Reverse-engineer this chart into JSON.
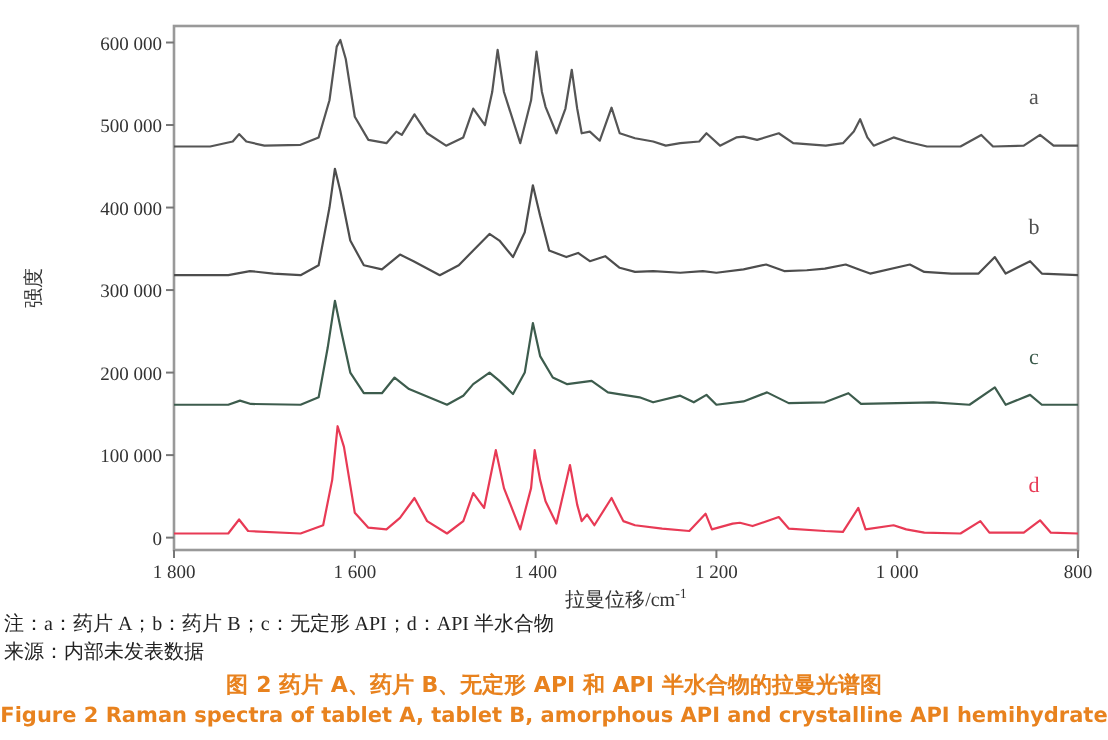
{
  "chart_data": {
    "type": "line",
    "title": "图 2 药片 A、药片 B、无定形 API 和 API 半水合物的拉曼光谱图",
    "subtitle": "Figure 2 Raman spectra of tablet A, tablet B, amorphous API and crystalline API hemihydrate",
    "xlabel": "拉曼位移/cm$^{-1}$",
    "ylabel": "强度",
    "annotations": [
      "注：a：药片 A；b：药片 B；c：无定形 API；d：API 半水合物",
      "来源：内部未发表数据"
    ],
    "xlim": [
      1800,
      800
    ],
    "ylim": [
      -15000,
      620000
    ],
    "xticks": [
      {
        "value": 1800,
        "label": "1 800"
      },
      {
        "value": 1600,
        "label": "1 600"
      },
      {
        "value": 1400,
        "label": "1 400"
      },
      {
        "value": 1200,
        "label": "1 200"
      },
      {
        "value": 1000,
        "label": "1 000"
      },
      {
        "value": 800,
        "label": "800"
      }
    ],
    "yticks": [
      0,
      {
        "value": 100000,
        "label": "100 000"
      },
      {
        "value": 200000,
        "label": "200 000"
      },
      {
        "value": 300000,
        "label": "300 000"
      },
      {
        "value": 400000,
        "label": "400 000"
      },
      {
        "value": 500000,
        "label": "500 000"
      },
      {
        "value": 600000,
        "label": "600 000"
      }
    ],
    "grid": false,
    "marker": "none",
    "line_style": "solid",
    "series": [
      {
        "name": "a",
        "color": "#555555",
        "x": [
          1800,
          1760,
          1735,
          1728,
          1720,
          1700,
          1660,
          1640,
          1628,
          1620,
          1616,
          1610,
          1600,
          1585,
          1565,
          1554,
          1548,
          1534,
          1520,
          1499,
          1480,
          1469,
          1456,
          1448,
          1442,
          1435,
          1417,
          1405,
          1399,
          1393,
          1389,
          1377,
          1367,
          1360,
          1354,
          1349,
          1340,
          1329,
          1316,
          1307,
          1290,
          1270,
          1256,
          1240,
          1219,
          1211,
          1196,
          1178,
          1170,
          1155,
          1131,
          1115,
          1079,
          1060,
          1048,
          1041,
          1033,
          1026,
          1004,
          990,
          967,
          930,
          907,
          894,
          860,
          842,
          827,
          800
        ],
        "values": [
          474000,
          474000,
          480000,
          489000,
          480000,
          475000,
          476000,
          485000,
          530000,
          595000,
          603000,
          580000,
          510000,
          482000,
          478000,
          492000,
          488000,
          513000,
          490000,
          475000,
          485000,
          520000,
          500000,
          540000,
          591000,
          540000,
          478000,
          530000,
          589000,
          540000,
          522000,
          490000,
          520000,
          567000,
          520000,
          490000,
          492000,
          481000,
          521000,
          490000,
          484000,
          480000,
          475000,
          478000,
          480000,
          490000,
          475000,
          485000,
          486000,
          482000,
          490000,
          478000,
          475000,
          478000,
          492000,
          507000,
          485000,
          475000,
          485000,
          480000,
          474000,
          474000,
          488000,
          474000,
          475000,
          488000,
          475000,
          475000
        ]
      },
      {
        "name": "b",
        "color": "#4d4d4d",
        "x": [
          1800,
          1740,
          1716,
          1690,
          1660,
          1640,
          1628,
          1622,
          1616,
          1605,
          1590,
          1570,
          1550,
          1535,
          1506,
          1485,
          1469,
          1451,
          1440,
          1425,
          1412,
          1403,
          1395,
          1385,
          1366,
          1353,
          1340,
          1323,
          1307,
          1290,
          1270,
          1240,
          1215,
          1200,
          1170,
          1145,
          1125,
          1100,
          1080,
          1057,
          1040,
          1030,
          986,
          970,
          940,
          910,
          892,
          880,
          853,
          840,
          800
        ],
        "values": [
          318000,
          318000,
          323000,
          320000,
          318000,
          330000,
          400000,
          447000,
          420000,
          360000,
          330000,
          325000,
          343000,
          335000,
          318000,
          330000,
          348000,
          368000,
          360000,
          340000,
          370000,
          427000,
          390000,
          348000,
          340000,
          345000,
          335000,
          341000,
          327000,
          322000,
          323000,
          321000,
          323000,
          321000,
          325000,
          331000,
          323000,
          324000,
          326000,
          331000,
          324000,
          320000,
          331000,
          322000,
          320000,
          320000,
          340000,
          320000,
          335000,
          320000,
          318000
        ]
      },
      {
        "name": "c",
        "color": "#3d5c4d",
        "x": [
          1800,
          1740,
          1727,
          1715,
          1660,
          1640,
          1630,
          1622,
          1615,
          1605,
          1590,
          1570,
          1556,
          1540,
          1498,
          1480,
          1469,
          1451,
          1440,
          1425,
          1412,
          1403,
          1395,
          1381,
          1365,
          1338,
          1320,
          1308,
          1285,
          1270,
          1240,
          1225,
          1211,
          1200,
          1170,
          1144,
          1120,
          1080,
          1054,
          1040,
          1000,
          960,
          920,
          892,
          880,
          853,
          840,
          800
        ],
        "values": [
          161000,
          161000,
          166000,
          162000,
          161000,
          170000,
          230000,
          287000,
          250000,
          200000,
          175000,
          175000,
          194000,
          180000,
          161000,
          172000,
          186000,
          200000,
          190000,
          174000,
          200000,
          260000,
          220000,
          194000,
          186000,
          190000,
          176000,
          174000,
          170000,
          164000,
          172000,
          164000,
          173000,
          161000,
          165000,
          176000,
          163000,
          164000,
          175000,
          162000,
          163000,
          164000,
          161000,
          182000,
          161000,
          173000,
          161000,
          161000
        ]
      },
      {
        "name": "d",
        "color": "#e83a55",
        "x": [
          1800,
          1740,
          1728,
          1718,
          1660,
          1635,
          1625,
          1619,
          1612,
          1600,
          1585,
          1565,
          1550,
          1534,
          1520,
          1498,
          1480,
          1469,
          1457,
          1444,
          1435,
          1417,
          1405,
          1401,
          1395,
          1389,
          1377,
          1362,
          1354,
          1349,
          1343,
          1335,
          1316,
          1303,
          1290,
          1260,
          1230,
          1212,
          1205,
          1182,
          1174,
          1160,
          1131,
          1120,
          1080,
          1060,
          1043,
          1035,
          1004,
          990,
          970,
          930,
          908,
          898,
          860,
          842,
          830,
          800
        ],
        "values": [
          5000,
          5000,
          22000,
          8000,
          5000,
          15000,
          70000,
          135000,
          110000,
          30000,
          12000,
          10000,
          24000,
          48000,
          20000,
          5000,
          20000,
          54000,
          36000,
          106000,
          60000,
          10000,
          60000,
          106000,
          70000,
          44000,
          17000,
          88000,
          40000,
          20000,
          28000,
          15000,
          48000,
          20000,
          15000,
          11000,
          8000,
          29000,
          10000,
          17000,
          18000,
          14000,
          25000,
          11000,
          8000,
          7000,
          36000,
          10000,
          15000,
          10000,
          6000,
          5000,
          20000,
          6000,
          6000,
          21000,
          6000,
          5000
        ]
      }
    ]
  }
}
